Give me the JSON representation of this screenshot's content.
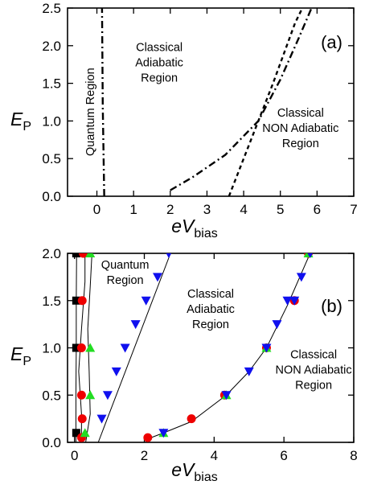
{
  "chart_data": [
    {
      "type": "line",
      "panel_label": "(a)",
      "xlabel": "eV",
      "xlabel_sub": "bias",
      "ylabel": "E",
      "ylabel_sub": "P",
      "xlim": [
        -0.8,
        7
      ],
      "ylim": [
        0,
        2.5
      ],
      "xticks": [
        0,
        1,
        2,
        3,
        4,
        5,
        6,
        7
      ],
      "yticks": [
        0.0,
        0.5,
        1.0,
        1.5,
        2.0,
        2.5
      ],
      "xtick_labels": [
        "0",
        "1",
        "2",
        "3",
        "4",
        "5",
        "6",
        "7"
      ],
      "ytick_labels": [
        "0.0",
        "0.5",
        "1.0",
        "1.5",
        "2.0",
        "2.5"
      ],
      "grid": false,
      "regions": [
        {
          "lines": [
            "Quantum Region"
          ],
          "x": -0.08,
          "y": 1.12,
          "rotated": true
        },
        {
          "lines": [
            "Classical",
            "Adiabatic",
            "Region"
          ],
          "x": 1.7,
          "y": 1.93
        },
        {
          "lines": [
            "Classical",
            "NON Adiabatic",
            "Region"
          ],
          "x": 5.55,
          "y": 1.06
        }
      ],
      "series": [
        {
          "style": "dashdot",
          "x": [
            0.2,
            0.16,
            0.14
          ],
          "y": [
            0.0,
            1.2,
            2.5
          ]
        },
        {
          "style": "dashdot",
          "x": [
            2.0,
            2.6,
            3.5,
            4.4,
            5.0,
            5.5,
            5.85
          ],
          "y": [
            0.08,
            0.25,
            0.55,
            1.0,
            1.55,
            2.1,
            2.5
          ]
        },
        {
          "style": "dashed",
          "x": [
            3.6,
            4.0,
            4.4,
            4.8,
            5.1,
            5.4,
            5.6
          ],
          "y": [
            0.0,
            0.5,
            1.0,
            1.5,
            1.9,
            2.3,
            2.5
          ]
        }
      ]
    },
    {
      "type": "scatter",
      "panel_label": "(b)",
      "xlabel": "eV",
      "xlabel_sub": "bias",
      "ylabel": "E",
      "ylabel_sub": "P",
      "xlim": [
        -0.2,
        8
      ],
      "ylim": [
        0,
        2
      ],
      "xticks": [
        0,
        2,
        4,
        6,
        8
      ],
      "yticks": [
        0.0,
        0.5,
        1.0,
        1.5,
        2.0
      ],
      "xtick_labels": [
        "0",
        "2",
        "4",
        "6",
        "8"
      ],
      "ytick_labels": [
        "0.0",
        "0.5",
        "1.0",
        "1.5",
        "2.0"
      ],
      "grid": false,
      "regions": [
        {
          "lines": [
            "Quantum",
            "Region"
          ],
          "x": 1.45,
          "y": 1.84
        },
        {
          "lines": [
            "Classical",
            "Adiabatic",
            "Region"
          ],
          "x": 3.9,
          "y": 1.53
        },
        {
          "lines": [
            "Classical",
            "NON Adiabatic",
            "Region"
          ],
          "x": 6.85,
          "y": 0.89
        }
      ],
      "series": [
        {
          "marker": "square",
          "color": "#000000",
          "x": [
            0.05,
            0.05,
            0.05,
            0.05
          ],
          "y": [
            0.1,
            1.0,
            1.5,
            2.0
          ]
        },
        {
          "marker": "circle",
          "color": "#ee0000",
          "x": [
            0.2,
            0.22,
            0.2,
            0.2,
            0.22,
            0.25,
            2.1,
            3.35,
            4.3,
            5.5,
            6.3,
            6.7
          ],
          "y": [
            0.05,
            0.25,
            0.5,
            1.0,
            1.5,
            2.0,
            0.05,
            0.25,
            0.5,
            1.0,
            1.5,
            2.0
          ]
        },
        {
          "marker": "triangle-up",
          "color": "#22dd22",
          "x": [
            0.3,
            0.45,
            0.45,
            0.45,
            2.55,
            4.35,
            5.5,
            6.7
          ],
          "y": [
            0.1,
            0.5,
            1.0,
            2.0,
            0.1,
            0.5,
            1.0,
            2.0
          ]
        },
        {
          "marker": "triangle-down",
          "color": "#1010ee",
          "x": [
            0.78,
            0.95,
            1.2,
            1.45,
            1.75,
            2.05,
            2.38,
            2.7,
            2.55,
            4.35,
            5.0,
            5.5,
            5.8,
            6.1,
            6.3,
            6.5,
            6.75
          ],
          "y": [
            0.25,
            0.5,
            0.75,
            1.0,
            1.25,
            1.5,
            1.75,
            2.0,
            0.1,
            0.5,
            0.75,
            1.0,
            1.25,
            1.5,
            1.5,
            1.75,
            2.0
          ]
        }
      ],
      "lines": [
        {
          "x": [
            0.04,
            0.04,
            0.05,
            0.05,
            0.06
          ],
          "y": [
            0.0,
            0.5,
            1.0,
            1.5,
            2.0
          ]
        },
        {
          "x": [
            0.2,
            0.2,
            0.12,
            0.2,
            0.3,
            0.3
          ],
          "y": [
            0.0,
            0.3,
            0.75,
            1.2,
            1.7,
            2.0
          ]
        },
        {
          "x": [
            0.32,
            0.45,
            0.42,
            0.38,
            0.45,
            0.5
          ],
          "y": [
            0.0,
            0.3,
            0.75,
            1.2,
            1.65,
            2.0
          ]
        },
        {
          "x": [
            0.68,
            2.75
          ],
          "y": [
            0.0,
            2.0
          ]
        },
        {
          "x": [
            2.05,
            2.55,
            3.35,
            4.35,
            5.0,
            5.5,
            6.1,
            6.75
          ],
          "y": [
            0.03,
            0.1,
            0.22,
            0.5,
            0.75,
            1.0,
            1.45,
            2.0
          ]
        }
      ]
    }
  ]
}
